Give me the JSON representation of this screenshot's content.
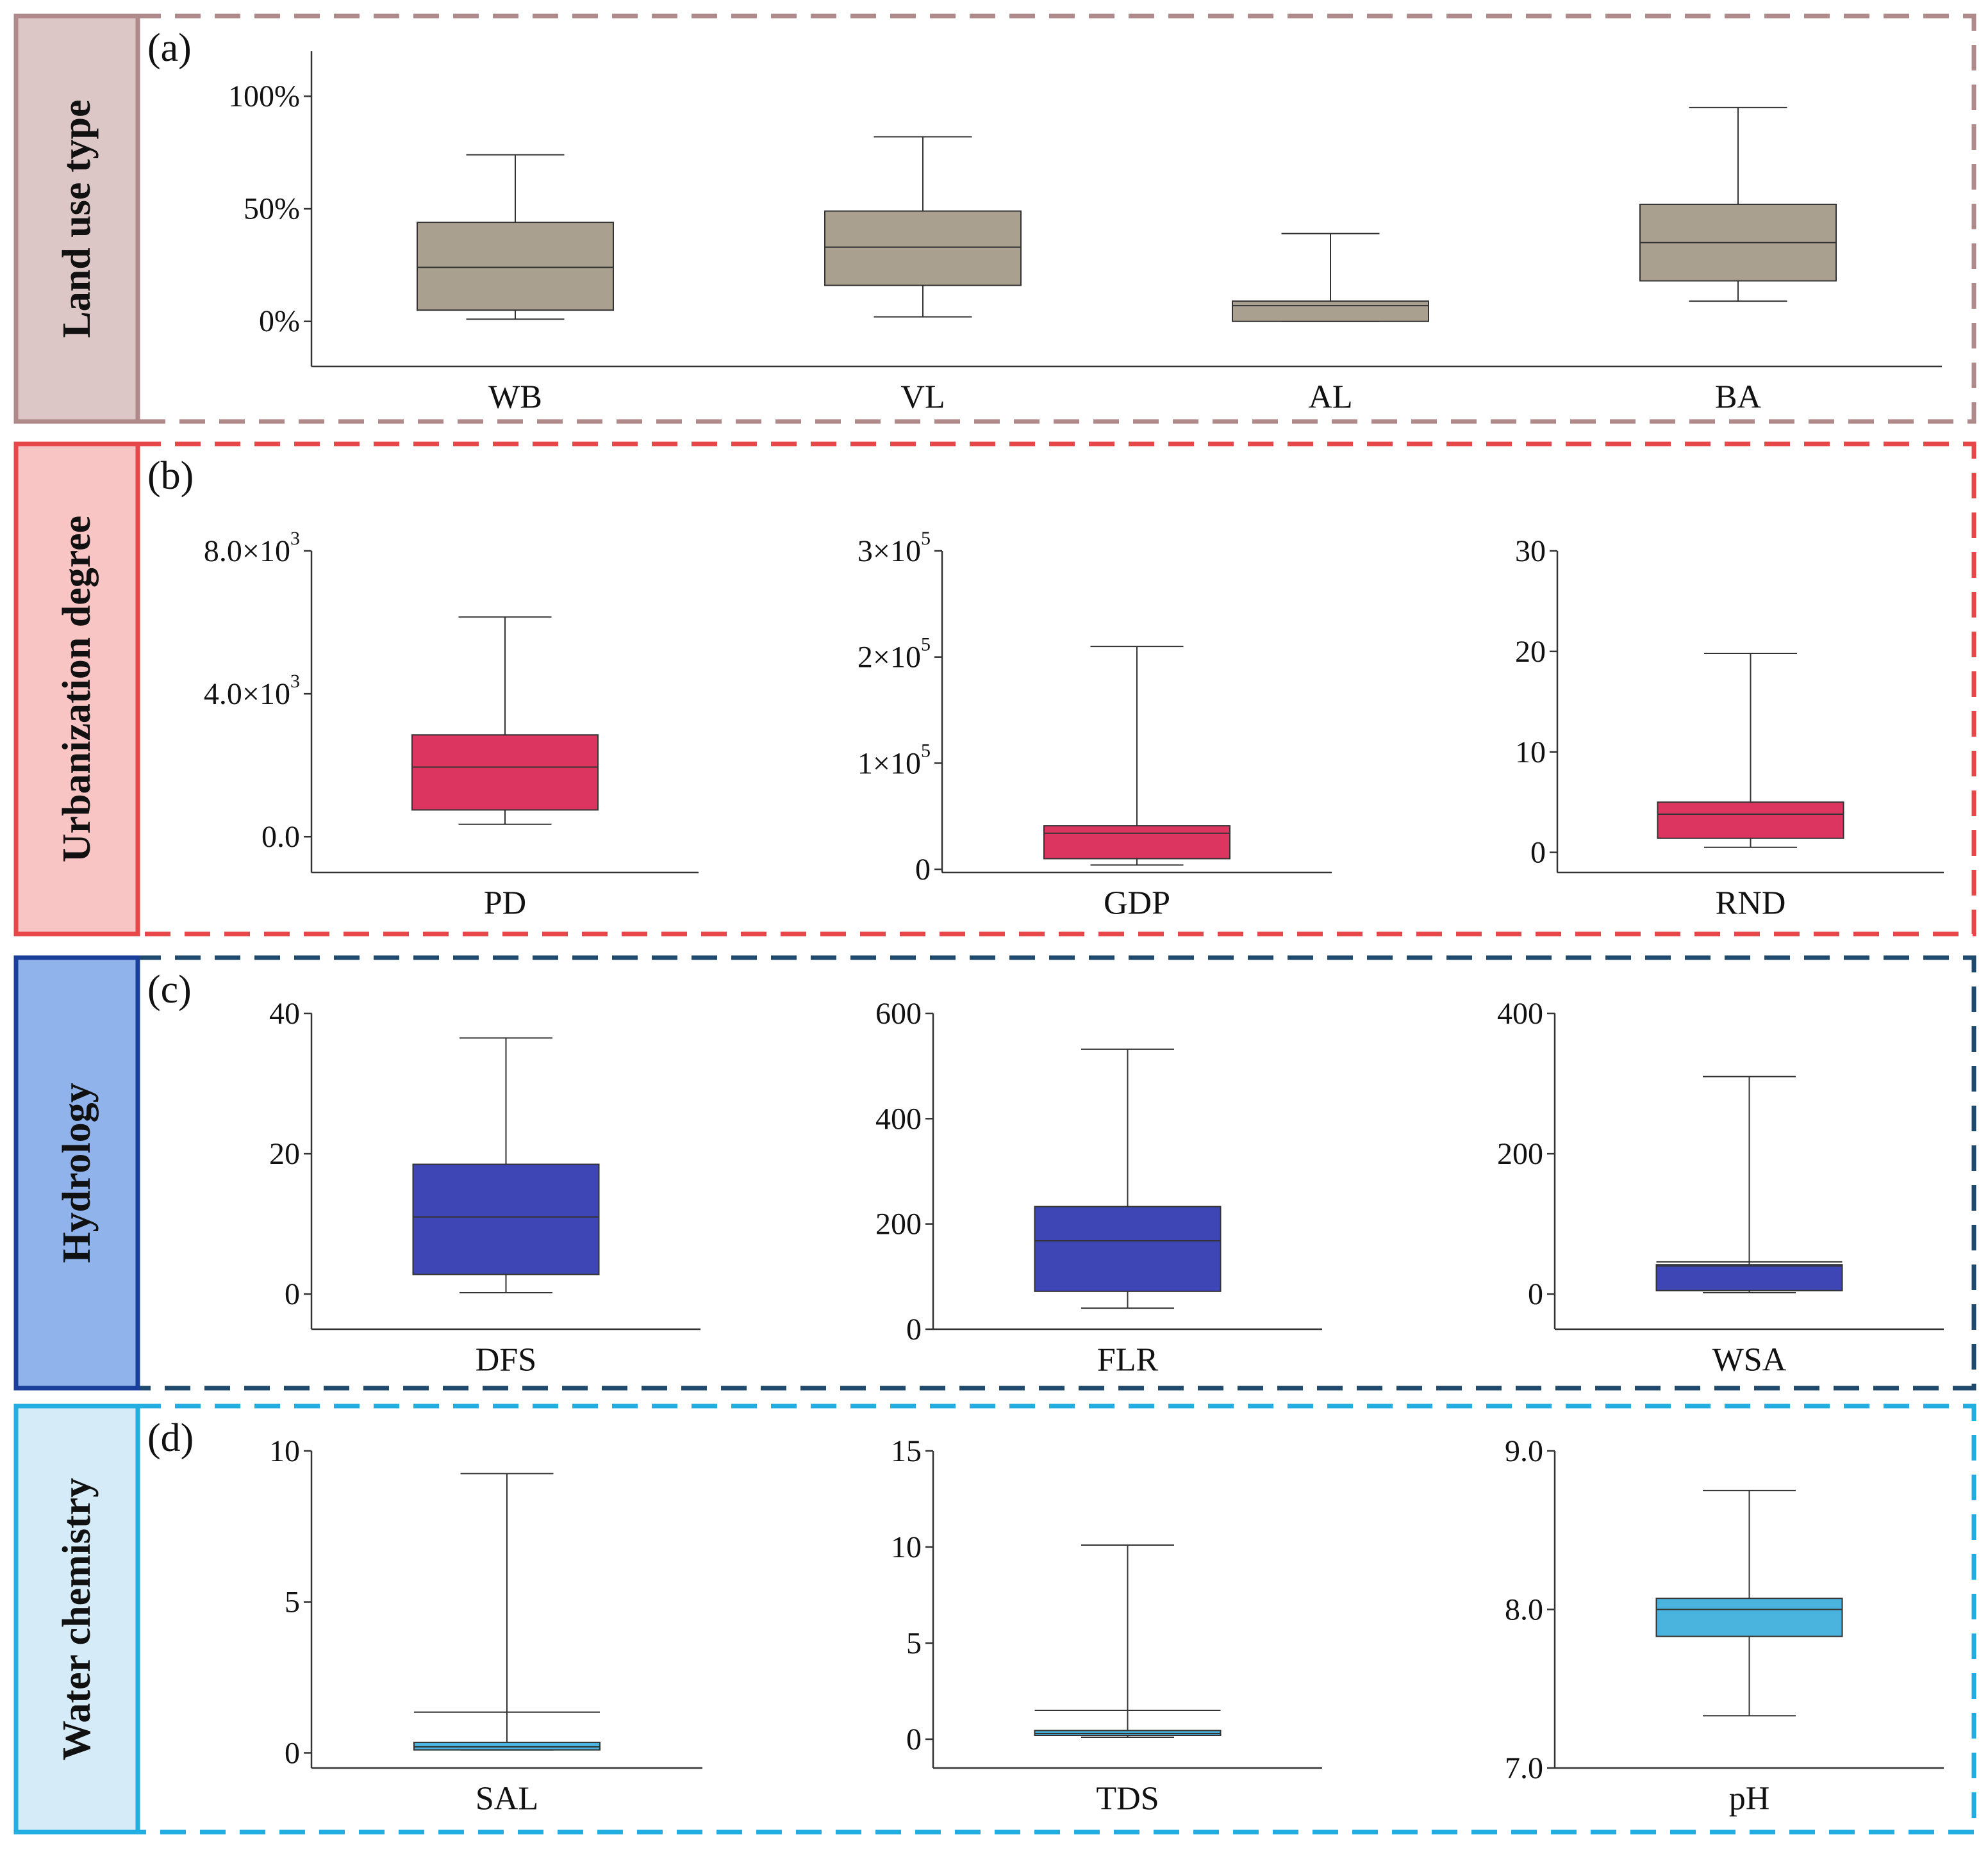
{
  "figure": {
    "background": "#ffffff"
  },
  "panels": [
    {
      "id": "a",
      "letter": "(a)",
      "group_label": "Land use type",
      "colors": {
        "border": "#b08a8a",
        "label_fill": "#dcc6c6",
        "box": "#a9a090"
      },
      "chart_data": {
        "type": "box",
        "ylim": [
          -20,
          120
        ],
        "yticks": [
          0,
          50,
          100
        ],
        "ytick_labels": [
          "0%",
          "50%",
          "100%"
        ],
        "boxes": [
          {
            "name": "WB",
            "whisker_low": 1,
            "q1": 5,
            "median": 24,
            "q3": 44,
            "whisker_high": 74
          },
          {
            "name": "VL",
            "whisker_low": 2,
            "q1": 16,
            "median": 33,
            "q3": 49,
            "whisker_high": 82
          },
          {
            "name": "AL",
            "whisker_low": 0,
            "q1": 0,
            "median": 7,
            "q3": 9,
            "whisker_high": 39
          },
          {
            "name": "BA",
            "whisker_low": 9,
            "q1": 18,
            "median": 35,
            "q3": 52,
            "whisker_high": 95
          }
        ]
      }
    },
    {
      "id": "b",
      "letter": "(b)",
      "group_label": "Urbanization degree",
      "colors": {
        "border": "#e8474a",
        "label_fill": "#f8c4c4",
        "box": "#dc355f"
      },
      "subplots": [
        {
          "chart_data": {
            "type": "box",
            "ylim": [
              -1000,
              8000
            ],
            "yticks": [
              0,
              4000,
              8000
            ],
            "ytick_labels": [
              {
                "base": "0.0",
                "exp": ""
              },
              {
                "base": "4.0×10",
                "exp": "3"
              },
              {
                "base": "8.0×10",
                "exp": "3"
              }
            ],
            "boxes": [
              {
                "name": "PD",
                "whisker_low": 350,
                "q1": 750,
                "median": 1950,
                "q3": 2850,
                "whisker_high": 6150
              }
            ]
          }
        },
        {
          "chart_data": {
            "type": "box",
            "ylim": [
              -3000,
              300000
            ],
            "yticks": [
              0,
              100000,
              200000,
              300000
            ],
            "ytick_labels": [
              {
                "base": "0",
                "exp": ""
              },
              {
                "base": "1×10",
                "exp": "5"
              },
              {
                "base": "2×10",
                "exp": "5"
              },
              {
                "base": "3×10",
                "exp": "5"
              }
            ],
            "boxes": [
              {
                "name": "GDP",
                "whisker_low": 4000,
                "q1": 10000,
                "median": 34000,
                "q3": 41000,
                "whisker_high": 210000
              }
            ]
          }
        },
        {
          "chart_data": {
            "type": "box",
            "ylim": [
              -2,
              30
            ],
            "yticks": [
              0,
              10,
              20,
              30
            ],
            "ytick_labels": [
              {
                "base": "0",
                "exp": ""
              },
              {
                "base": "10",
                "exp": ""
              },
              {
                "base": "20",
                "exp": ""
              },
              {
                "base": "30",
                "exp": ""
              }
            ],
            "boxes": [
              {
                "name": "RND",
                "whisker_low": 0.5,
                "q1": 1.4,
                "median": 3.8,
                "q3": 5.0,
                "whisker_high": 19.8
              }
            ]
          }
        }
      ]
    },
    {
      "id": "c",
      "letter": "(c)",
      "group_label": "Hydrology",
      "colors": {
        "border": "#1f4a6e",
        "label_fill": "#8fb3ea",
        "label_border": "#1a3f9a",
        "box": "#3e45b5"
      },
      "subplots": [
        {
          "chart_data": {
            "type": "box",
            "ylim": [
              -5,
              40
            ],
            "yticks": [
              0,
              20,
              40
            ],
            "ytick_labels": [
              {
                "base": "0",
                "exp": ""
              },
              {
                "base": "20",
                "exp": ""
              },
              {
                "base": "40",
                "exp": ""
              }
            ],
            "boxes": [
              {
                "name": "DFS",
                "whisker_low": 0.2,
                "q1": 2.8,
                "median": 11,
                "q3": 18.5,
                "whisker_high": 36.5
              }
            ]
          }
        },
        {
          "chart_data": {
            "type": "box",
            "ylim": [
              0,
              600
            ],
            "yticks": [
              0,
              200,
              400,
              600
            ],
            "ytick_labels": [
              {
                "base": "0",
                "exp": ""
              },
              {
                "base": "200",
                "exp": ""
              },
              {
                "base": "400",
                "exp": ""
              },
              {
                "base": "600",
                "exp": ""
              }
            ],
            "boxes": [
              {
                "name": "FLR",
                "whisker_low": 40,
                "q1": 72,
                "median": 168,
                "q3": 233,
                "whisker_high": 532
              }
            ]
          }
        },
        {
          "chart_data": {
            "type": "box",
            "ylim": [
              -50,
              400
            ],
            "yticks": [
              0,
              200,
              400
            ],
            "ytick_labels": [
              {
                "base": "0",
                "exp": ""
              },
              {
                "base": "200",
                "exp": ""
              },
              {
                "base": "400",
                "exp": ""
              }
            ],
            "boxes": [
              {
                "name": "WSA",
                "whisker_low": 2,
                "q1": 5,
                "median": 40,
                "q3": 42,
                "whisker_high": 310,
                "whisker_high_short": 46
              }
            ]
          }
        }
      ]
    },
    {
      "id": "d",
      "letter": "(d)",
      "group_label": "Water chemistry",
      "colors": {
        "border": "#22aee0",
        "label_fill": "#d5ecf8",
        "box": "#4ab3de"
      },
      "subplots": [
        {
          "chart_data": {
            "type": "box",
            "ylim": [
              -0.5,
              10
            ],
            "yticks": [
              0,
              5,
              10
            ],
            "ytick_labels": [
              {
                "base": "0",
                "exp": ""
              },
              {
                "base": "5",
                "exp": ""
              },
              {
                "base": "10",
                "exp": ""
              }
            ],
            "boxes": [
              {
                "name": "SAL",
                "whisker_low": 0.1,
                "q1": 0.1,
                "median": 0.2,
                "q3": 0.35,
                "whisker_high": 9.25,
                "whisker_high_short": 1.35
              }
            ]
          }
        },
        {
          "chart_data": {
            "type": "box",
            "ylim": [
              -1.5,
              15
            ],
            "yticks": [
              0,
              5,
              10,
              15
            ],
            "ytick_labels": [
              {
                "base": "0",
                "exp": ""
              },
              {
                "base": "5",
                "exp": ""
              },
              {
                "base": "10",
                "exp": ""
              },
              {
                "base": "15",
                "exp": ""
              }
            ],
            "boxes": [
              {
                "name": "TDS",
                "whisker_low": 0.1,
                "q1": 0.2,
                "median": 0.3,
                "q3": 0.45,
                "whisker_high": 10.1,
                "whisker_high_short": 1.5
              }
            ]
          }
        },
        {
          "chart_data": {
            "type": "box",
            "ylim": [
              7.0,
              9.0
            ],
            "yticks": [
              7.0,
              8.0,
              9.0
            ],
            "ytick_labels": [
              {
                "base": "7.0",
                "exp": ""
              },
              {
                "base": "8.0",
                "exp": ""
              },
              {
                "base": "9.0",
                "exp": ""
              }
            ],
            "boxes": [
              {
                "name": "pH",
                "whisker_low": 7.33,
                "q1": 7.83,
                "median": 8.0,
                "q3": 8.07,
                "whisker_high": 8.75
              }
            ]
          }
        }
      ]
    }
  ]
}
